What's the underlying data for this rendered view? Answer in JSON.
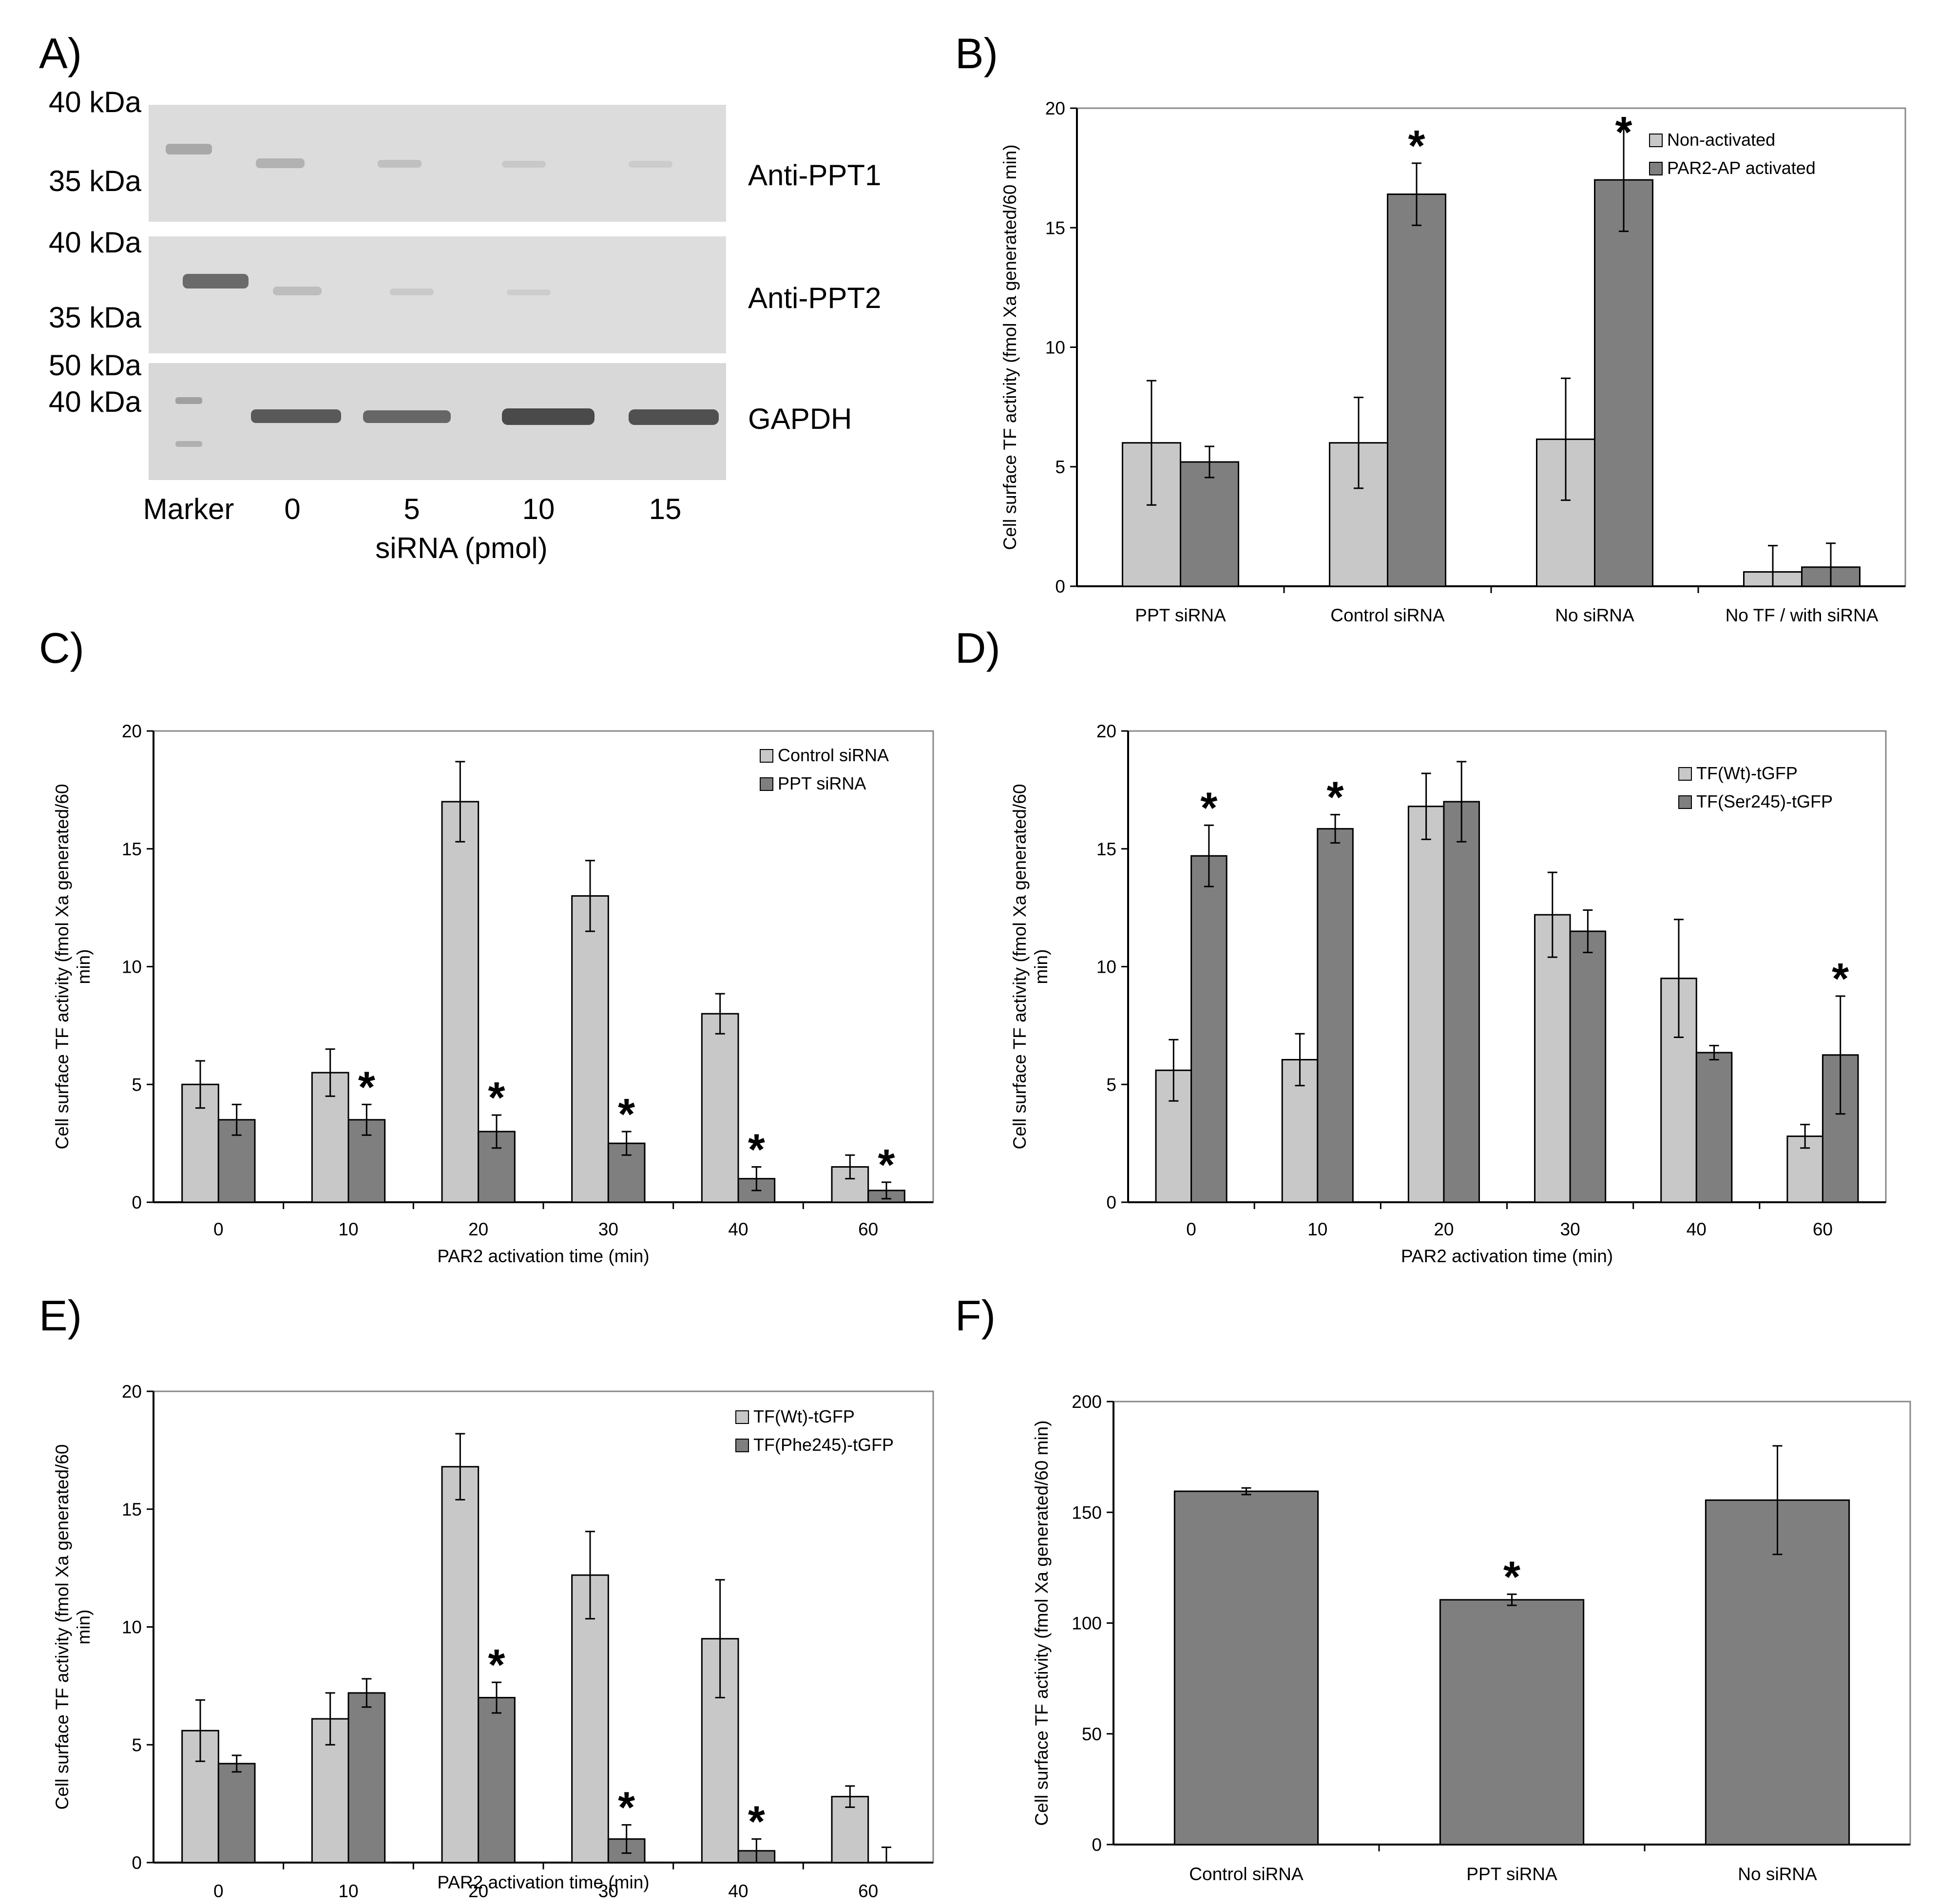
{
  "panels": {
    "A": "A)",
    "B": "B)",
    "C": "C)",
    "D": "D)",
    "E": "E)",
    "F": "F)"
  },
  "western_blot": {
    "mw_labels": {
      "ppt1_top": "40 kDa",
      "ppt1_bottom": "35 kDa",
      "ppt2_top": "40 kDa",
      "ppt2_bottom": "35 kDa",
      "gapdh_top": "50 kDa",
      "gapdh_bottom": "40 kDa"
    },
    "row_labels": [
      "Anti-PPT1",
      "Anti-PPT2",
      "GAPDH"
    ],
    "lane_labels": [
      "Marker",
      "0",
      "5",
      "10",
      "15"
    ],
    "xlabel": "siRNA (pmol)"
  },
  "colors": {
    "light_bar": "#c8c8c8",
    "dark_bar": "#7f7f7f",
    "axis": "#000000"
  },
  "chart_data": [
    {
      "id": "B",
      "type": "bar",
      "ylabel": "Cell surface TF activity (fmol Xa generated/60 min)",
      "xlabel": "",
      "ylim": [
        0,
        20
      ],
      "yticks": [
        "0",
        "5",
        "10",
        "15",
        "20"
      ],
      "categories": [
        "PPT siRNA",
        "Control siRNA",
        "No siRNA",
        "No TF / with siRNA"
      ],
      "series": [
        {
          "name": "Non-activated",
          "values": [
            6.0,
            6.0,
            6.15,
            0.6
          ],
          "errors": [
            2.6,
            1.9,
            2.55,
            1.1
          ]
        },
        {
          "name": "PAR2-AP activated",
          "values": [
            5.2,
            16.4,
            17.0,
            0.8
          ],
          "errors": [
            0.65,
            1.3,
            2.15,
            1.0
          ]
        }
      ],
      "significance": [
        false,
        true,
        true,
        false
      ],
      "legend": "top-right"
    },
    {
      "id": "C",
      "type": "bar",
      "ylabel": "Cell surface TF activity (fmol Xa generated/60 min)",
      "xlabel": "PAR2 activation time (min)",
      "ylim": [
        0,
        20
      ],
      "yticks": [
        "0",
        "5",
        "10",
        "15",
        "20"
      ],
      "categories": [
        "0",
        "10",
        "20",
        "30",
        "40",
        "60"
      ],
      "series": [
        {
          "name": "Control siRNA",
          "values": [
            5.0,
            5.5,
            17.0,
            13.0,
            8.0,
            1.5
          ],
          "errors": [
            1.0,
            1.0,
            1.7,
            1.5,
            0.85,
            0.5
          ]
        },
        {
          "name": "PPT siRNA",
          "values": [
            3.5,
            3.5,
            3.0,
            2.5,
            1.0,
            0.5
          ],
          "errors": [
            0.65,
            0.65,
            0.7,
            0.5,
            0.5,
            0.35
          ]
        }
      ],
      "significance": [
        false,
        true,
        true,
        true,
        true,
        true
      ],
      "legend": "top-right"
    },
    {
      "id": "D",
      "type": "bar",
      "ylabel": "Cell surface TF activity (fmol Xa generated/60 min)",
      "xlabel": "PAR2 activation time (min)",
      "ylim": [
        0,
        20
      ],
      "yticks": [
        "0",
        "5",
        "10",
        "15",
        "20"
      ],
      "categories": [
        "0",
        "10",
        "20",
        "30",
        "40",
        "60"
      ],
      "series": [
        {
          "name": "TF(Wt)-tGFP",
          "values": [
            5.6,
            6.05,
            16.8,
            12.2,
            9.5,
            2.8
          ],
          "errors": [
            1.3,
            1.1,
            1.4,
            1.8,
            2.5,
            0.5
          ]
        },
        {
          "name": "TF(Ser245)-tGFP",
          "values": [
            14.7,
            15.85,
            17.0,
            11.5,
            6.35,
            6.25
          ],
          "errors": [
            1.3,
            0.6,
            1.7,
            0.9,
            0.3,
            2.5
          ]
        }
      ],
      "significance": [
        true,
        true,
        false,
        false,
        false,
        true
      ],
      "legend": "top-right"
    },
    {
      "id": "E",
      "type": "bar",
      "ylabel": "Cell surface TF activity (fmol Xa generated/60 min)",
      "xlabel": "PAR2 activation time (min)",
      "ylim": [
        0,
        20
      ],
      "yticks": [
        "0",
        "5",
        "10",
        "15",
        "20"
      ],
      "categories": [
        "0",
        "10",
        "20",
        "30",
        "40",
        "60"
      ],
      "series": [
        {
          "name": "TF(Wt)-tGFP",
          "values": [
            5.6,
            6.1,
            16.8,
            12.2,
            9.5,
            2.8
          ],
          "errors": [
            1.3,
            1.1,
            1.4,
            1.85,
            2.5,
            0.45
          ]
        },
        {
          "name": "TF(Phe245)-tGFP",
          "values": [
            4.2,
            7.2,
            7.0,
            1.0,
            0.5,
            0.0
          ],
          "errors": [
            0.35,
            0.6,
            0.65,
            0.6,
            0.5,
            0.65
          ]
        }
      ],
      "significance": [
        false,
        false,
        true,
        true,
        true,
        false
      ],
      "legend": "top-right"
    },
    {
      "id": "F",
      "type": "bar",
      "ylabel": "Cell surface TF activity (fmol Xa generated/60 min)",
      "xlabel": "",
      "ylim": [
        0,
        200
      ],
      "yticks": [
        "0",
        "50",
        "100",
        "150",
        "200"
      ],
      "categories": [
        "Control siRNA",
        "PPT siRNA",
        "No siRNA"
      ],
      "series": [
        {
          "name": "",
          "values": [
            159.5,
            110.5,
            155.5
          ],
          "errors": [
            1.5,
            2.5,
            24.5
          ]
        }
      ],
      "significance": [
        false,
        true,
        false
      ]
    }
  ]
}
